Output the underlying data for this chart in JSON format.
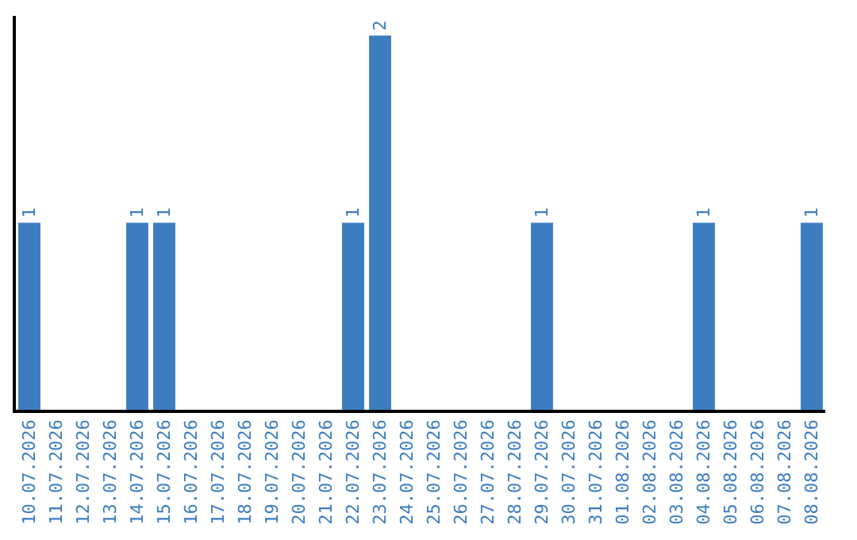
{
  "chart_data": {
    "type": "bar",
    "categories": [
      "10.07.2026",
      "11.07.2026",
      "12.07.2026",
      "13.07.2026",
      "14.07.2026",
      "15.07.2026",
      "16.07.2026",
      "17.07.2026",
      "18.07.2026",
      "19.07.2026",
      "20.07.2026",
      "21.07.2026",
      "22.07.2026",
      "23.07.2026",
      "24.07.2026",
      "25.07.2026",
      "26.07.2026",
      "27.07.2026",
      "28.07.2026",
      "29.07.2026",
      "30.07.2026",
      "31.07.2026",
      "01.08.2026",
      "02.08.2026",
      "03.08.2026",
      "04.08.2026",
      "05.08.2026",
      "06.08.2026",
      "07.08.2026",
      "08.08.2026"
    ],
    "values": [
      1,
      0,
      0,
      0,
      1,
      1,
      0,
      0,
      0,
      0,
      0,
      0,
      1,
      2,
      0,
      0,
      0,
      0,
      0,
      1,
      0,
      0,
      0,
      0,
      0,
      1,
      0,
      0,
      0,
      1
    ],
    "value_labels": [
      "1",
      null,
      null,
      null,
      "1",
      "1",
      null,
      null,
      null,
      null,
      null,
      null,
      "1",
      "2",
      null,
      null,
      null,
      null,
      null,
      "1",
      null,
      null,
      null,
      null,
      null,
      "1",
      null,
      null,
      null,
      "1"
    ],
    "color": "#3c7dc0"
  }
}
